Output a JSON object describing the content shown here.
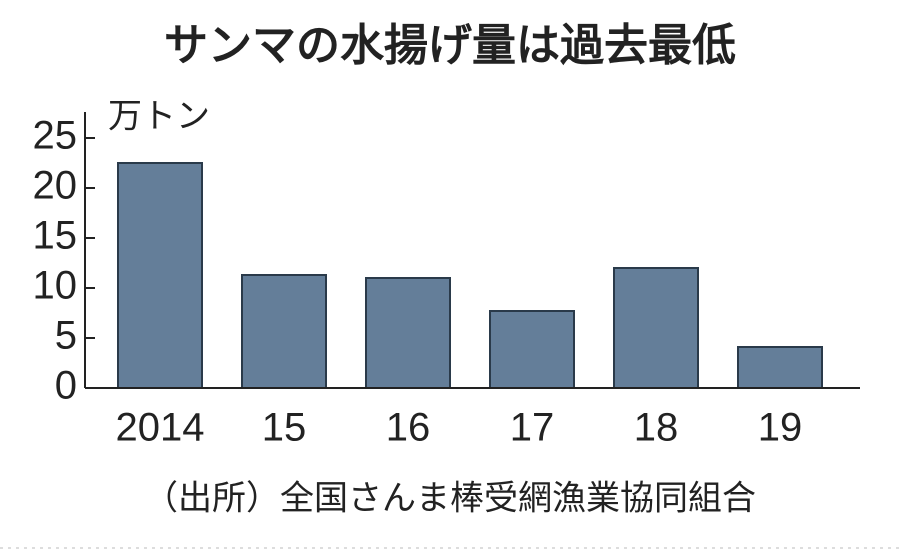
{
  "chart_data": {
    "type": "bar",
    "title": "サンマの水揚げ量は過去最低",
    "y_label": "万トン",
    "categories": [
      "2014",
      "15",
      "16",
      "17",
      "18",
      "19"
    ],
    "values": [
      22.5,
      11.3,
      11.0,
      7.7,
      12.0,
      4.1
    ],
    "color": "#647e99",
    "ylim": [
      0,
      25
    ],
    "yticks": [
      0,
      5,
      10,
      15,
      20,
      25
    ],
    "source": "（出所）全国さんま棒受網漁業協同組合"
  }
}
